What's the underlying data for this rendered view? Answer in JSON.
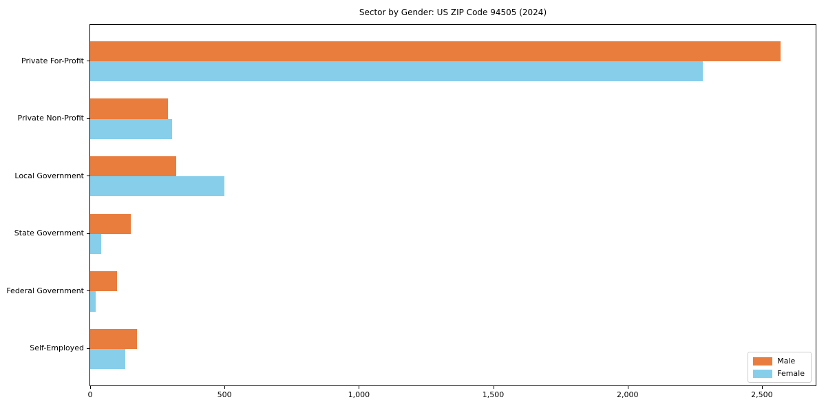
{
  "chart_data": {
    "type": "bar",
    "orientation": "horizontal",
    "title": "Sector by Gender: US ZIP Code 94505 (2024)",
    "categories": [
      "Private For-Profit",
      "Private Non-Profit",
      "Local Government",
      "State Government",
      "Federal Government",
      "Self-Employed"
    ],
    "series": [
      {
        "name": "Male",
        "color": "#e87d3e",
        "values": [
          2570,
          290,
          320,
          150,
          100,
          175
        ]
      },
      {
        "name": "Female",
        "color": "#87ceeb",
        "values": [
          2280,
          305,
          500,
          40,
          20,
          130
        ]
      }
    ],
    "xlabel": "",
    "ylabel": "",
    "xlim": [
      0,
      2700
    ],
    "xticks": {
      "values": [
        0,
        500,
        1000,
        1500,
        2000,
        2500
      ],
      "labels": [
        "0",
        "500",
        "1,000",
        "1,500",
        "2,000",
        "2,500"
      ]
    },
    "grid": false,
    "legend_position": "lower right",
    "frame_color": "#000000",
    "background_color": "#ffffff"
  }
}
